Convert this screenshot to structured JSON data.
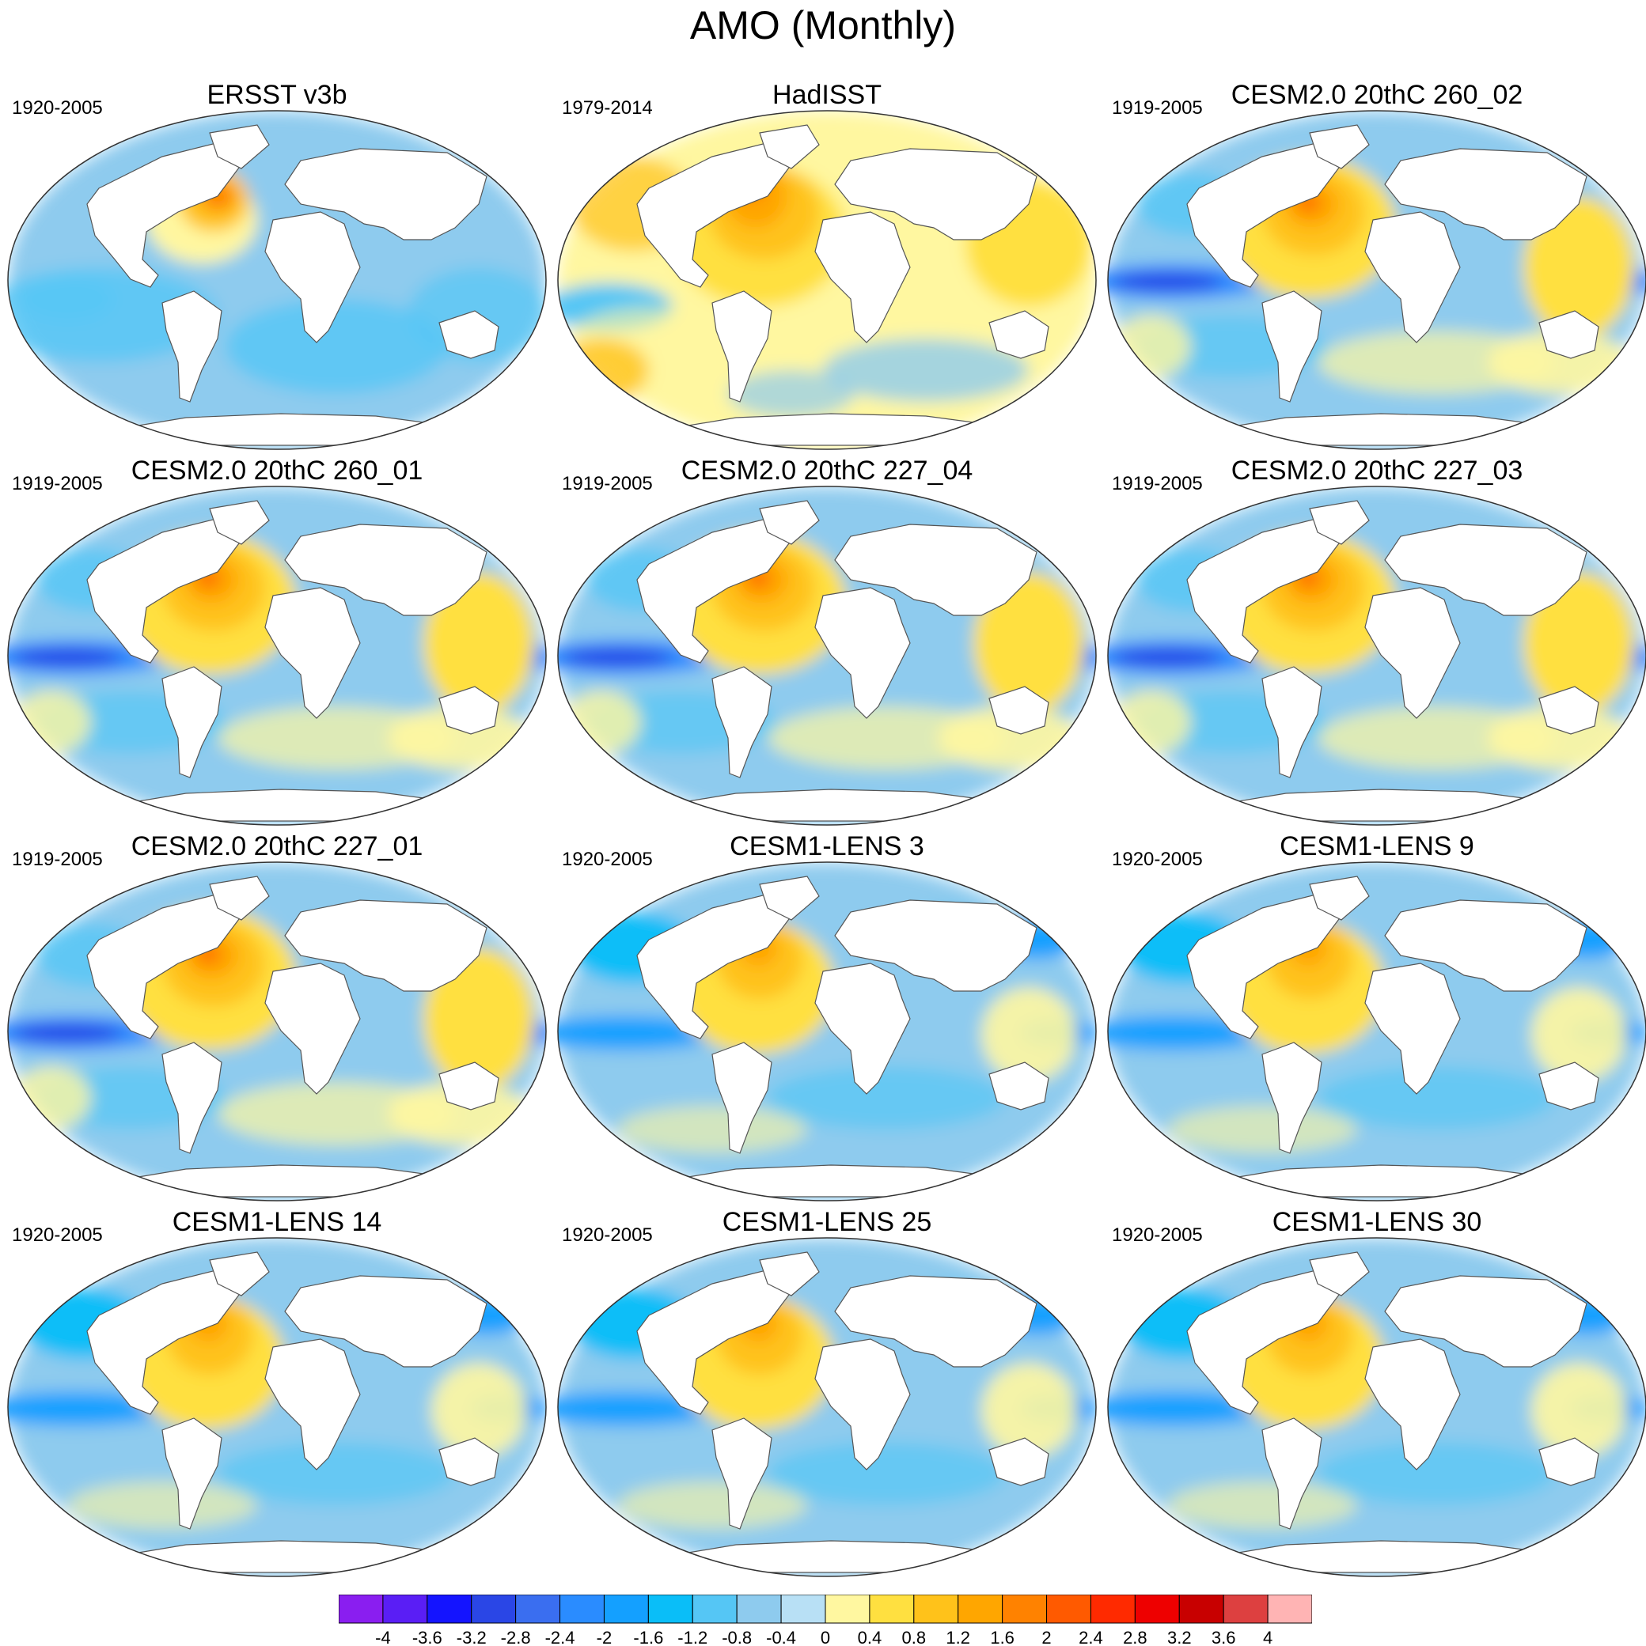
{
  "title": "AMO (Monthly)",
  "panels": [
    {
      "title": "ERSST v3b",
      "years": "1920-2005",
      "style": "cool"
    },
    {
      "title": "HadISST",
      "years": "1979-2014",
      "style": "warm"
    },
    {
      "title": "CESM2.0 20thC 260_02",
      "years": "1919-2005",
      "style": "model"
    },
    {
      "title": "CESM2.0 20thC 260_01",
      "years": "1919-2005",
      "style": "model"
    },
    {
      "title": "CESM2.0 20thC 227_04",
      "years": "1919-2005",
      "style": "model"
    },
    {
      "title": "CESM2.0 20thC 227_03",
      "years": "1919-2005",
      "style": "model"
    },
    {
      "title": "CESM2.0 20thC 227_01",
      "years": "1919-2005",
      "style": "model"
    },
    {
      "title": "CESM1-LENS 3",
      "years": "1920-2005",
      "style": "lens"
    },
    {
      "title": "CESM1-LENS 9",
      "years": "1920-2005",
      "style": "lens"
    },
    {
      "title": "CESM1-LENS 14",
      "years": "1920-2005",
      "style": "lens"
    },
    {
      "title": "CESM1-LENS 25",
      "years": "1920-2005",
      "style": "lens"
    },
    {
      "title": "CESM1-LENS 30",
      "years": "1920-2005",
      "style": "lens"
    }
  ],
  "colorbar": {
    "labels": [
      "-4",
      "-3.6",
      "-3.2",
      "-2.8",
      "-2.4",
      "-2",
      "-1.6",
      "-1.2",
      "-0.8",
      "-0.4",
      "0",
      "0.4",
      "0.8",
      "1.2",
      "1.6",
      "2",
      "2.4",
      "2.8",
      "3.2",
      "3.6",
      "4"
    ],
    "colors": [
      "#8a1ef0",
      "#5a1ef5",
      "#1414ff",
      "#2a46e6",
      "#3a6ef0",
      "#2a8cff",
      "#14a0ff",
      "#0abef8",
      "#55c6f5",
      "#8ecbee",
      "#b8e0f5",
      "#fff7a0",
      "#ffe040",
      "#ffc21a",
      "#ffa600",
      "#ff8200",
      "#ff5a00",
      "#ff2a00",
      "#ee0000",
      "#c80000",
      "#dd4040",
      "#ffb4b4"
    ]
  }
}
